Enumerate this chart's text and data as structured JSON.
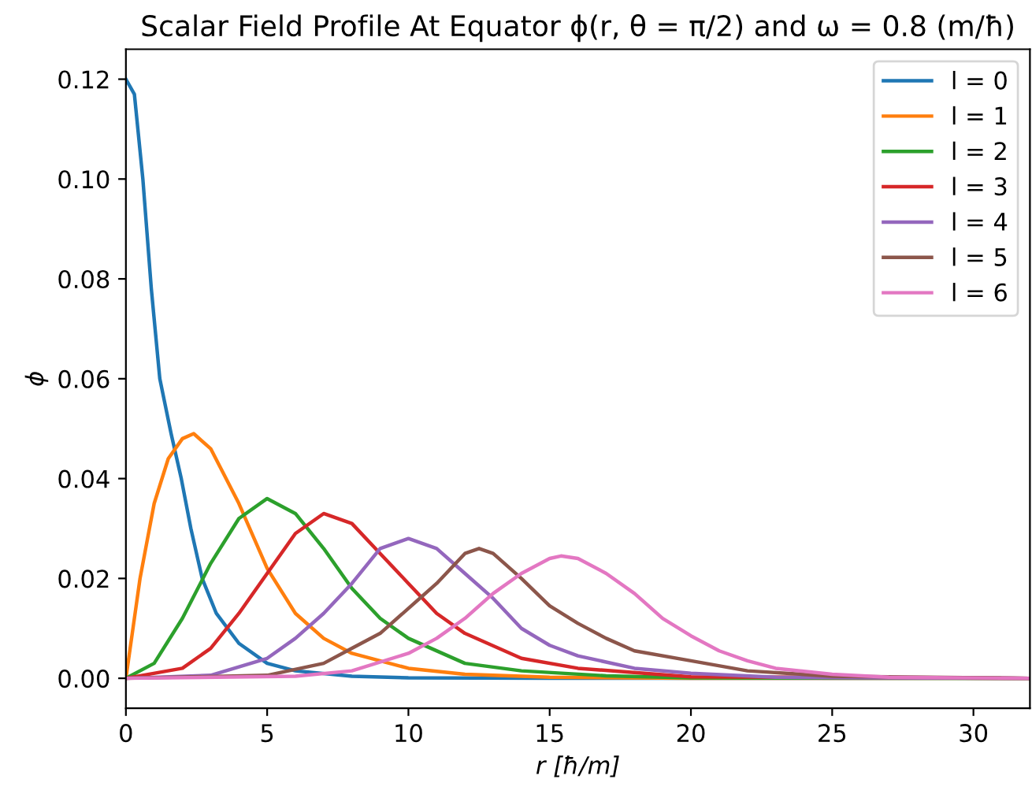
{
  "chart_data": {
    "type": "line",
    "title": "Scalar Field Profile At Equator ϕ(r, θ = π/2) and ω = 0.8 (m/ħ)",
    "xlabel": "r [ħ/m]",
    "ylabel": "ϕ",
    "xlim": [
      0,
      32
    ],
    "ylim": [
      -0.006,
      0.126
    ],
    "xticks": [
      0,
      5,
      10,
      15,
      20,
      25,
      30
    ],
    "yticks": [
      {
        "value": 0,
        "label": "0.00"
      },
      {
        "value": 0.02,
        "label": "0.02"
      },
      {
        "value": 0.04,
        "label": "0.04"
      },
      {
        "value": 0.06,
        "label": "0.06"
      },
      {
        "value": 0.08,
        "label": "0.08"
      },
      {
        "value": 0.1,
        "label": "0.10"
      },
      {
        "value": 0.12,
        "label": "0.12"
      }
    ],
    "grid": false,
    "legend": "top right",
    "marker": "none",
    "line_style": "solid",
    "series": [
      {
        "name": "l = 0",
        "color": "#1f77b4",
        "x": [
          0,
          0.3,
          0.6,
          0.9,
          1.2,
          1.6,
          1.96,
          2.3,
          2.7,
          3.2,
          4,
          5,
          6,
          8,
          10,
          15,
          32
        ],
        "values": [
          0.12,
          0.117,
          0.1,
          0.078,
          0.06,
          0.049,
          0.04,
          0.03,
          0.02,
          0.013,
          0.007,
          0.003,
          0.0015,
          0.0004,
          0.0001,
          0,
          0
        ]
      },
      {
        "name": "l = 1",
        "color": "#ff7f0e",
        "x": [
          0,
          0.5,
          1,
          1.5,
          2,
          2.4,
          3,
          4,
          5,
          6,
          7,
          8,
          10,
          12,
          15,
          20,
          32
        ],
        "values": [
          0,
          0.02,
          0.035,
          0.044,
          0.048,
          0.049,
          0.046,
          0.035,
          0.022,
          0.013,
          0.008,
          0.005,
          0.002,
          0.0008,
          0.0002,
          0,
          0
        ]
      },
      {
        "name": "l = 2",
        "color": "#2ca02c",
        "x": [
          0,
          1,
          2,
          3,
          4,
          5,
          6,
          7,
          8,
          9,
          10,
          12,
          14,
          17,
          20,
          32
        ],
        "values": [
          0,
          0.003,
          0.012,
          0.023,
          0.032,
          0.036,
          0.033,
          0.026,
          0.018,
          0.012,
          0.008,
          0.003,
          0.0015,
          0.0005,
          0.0001,
          0
        ]
      },
      {
        "name": "l = 3",
        "color": "#d62728",
        "x": [
          0,
          2,
          3,
          4,
          5,
          6,
          7,
          8,
          9,
          10,
          11,
          12,
          14,
          16,
          20,
          32
        ],
        "values": [
          0,
          0.002,
          0.006,
          0.013,
          0.021,
          0.029,
          0.033,
          0.031,
          0.025,
          0.019,
          0.013,
          0.009,
          0.004,
          0.002,
          0.0003,
          0
        ]
      },
      {
        "name": "l = 4",
        "color": "#9467bd",
        "x": [
          0,
          3,
          5,
          6,
          7,
          8,
          9,
          10,
          11,
          12,
          13,
          14,
          15,
          16,
          18,
          20,
          23,
          32
        ],
        "values": [
          0,
          0.0006,
          0.004,
          0.008,
          0.013,
          0.019,
          0.026,
          0.028,
          0.026,
          0.021,
          0.016,
          0.01,
          0.0066,
          0.0045,
          0.002,
          0.001,
          0.0002,
          0
        ]
      },
      {
        "name": "l = 5",
        "color": "#8c564b",
        "x": [
          0,
          5,
          7,
          8,
          9,
          10,
          11,
          12,
          12.5,
          13,
          14,
          15,
          16,
          17,
          18,
          20,
          22,
          25,
          32
        ],
        "values": [
          0,
          0.0006,
          0.003,
          0.006,
          0.009,
          0.014,
          0.019,
          0.025,
          0.026,
          0.025,
          0.02,
          0.0145,
          0.011,
          0.008,
          0.0055,
          0.0035,
          0.0015,
          0.0004,
          0
        ]
      },
      {
        "name": "l = 6",
        "color": "#e377c2",
        "x": [
          0,
          6,
          8,
          10,
          11,
          12,
          13,
          14,
          15,
          15.4,
          16,
          17,
          18,
          19,
          20,
          21,
          22,
          23,
          25,
          27,
          32
        ],
        "values": [
          0,
          0.0004,
          0.0015,
          0.005,
          0.008,
          0.012,
          0.017,
          0.021,
          0.024,
          0.0245,
          0.024,
          0.021,
          0.017,
          0.012,
          0.0085,
          0.0055,
          0.0035,
          0.002,
          0.0008,
          0.0002,
          0
        ]
      }
    ]
  }
}
